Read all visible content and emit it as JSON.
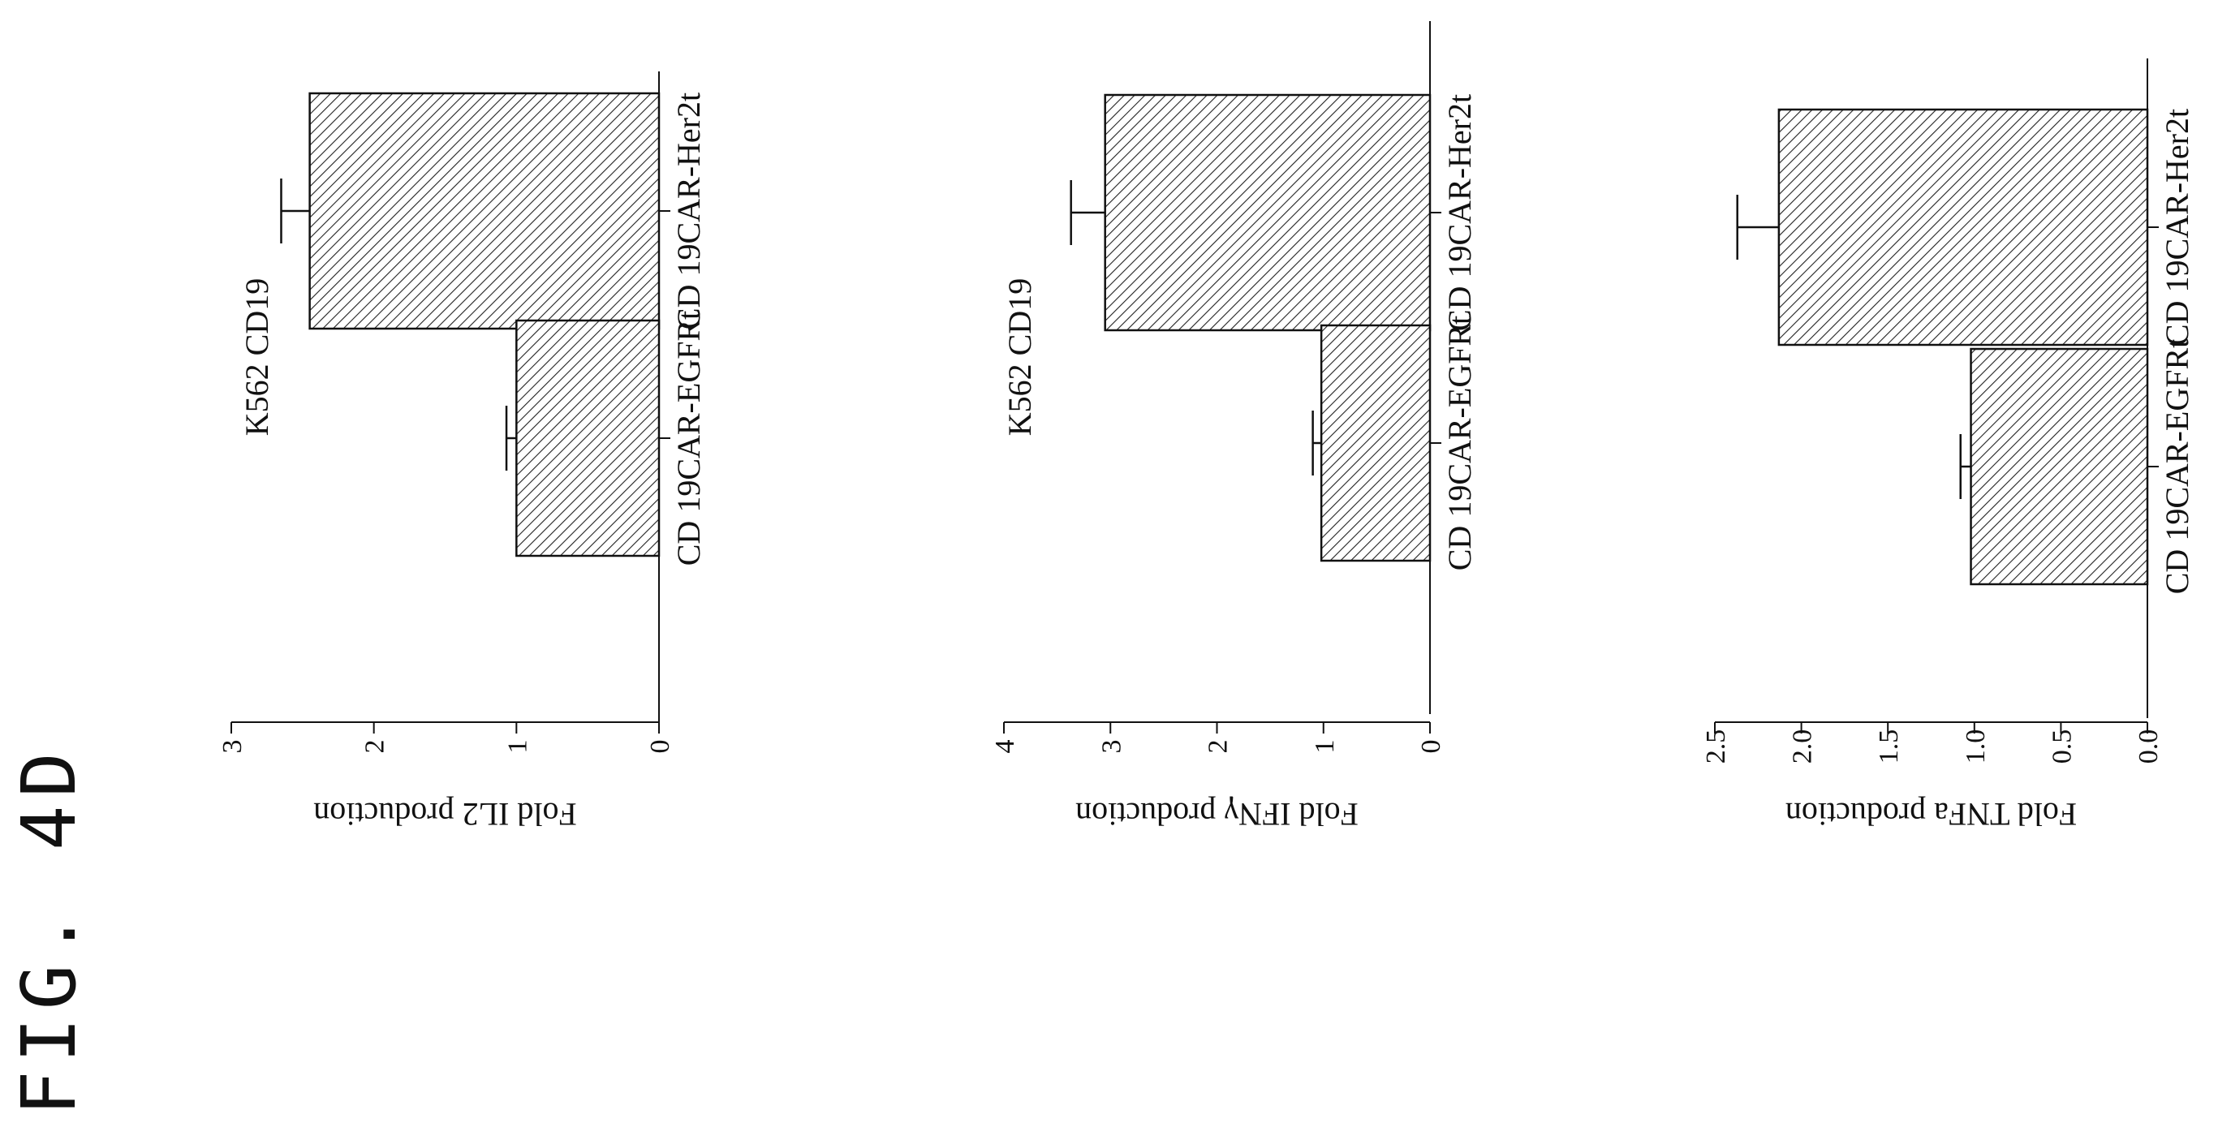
{
  "figure_label": "FIG. 4D",
  "chart_data": [
    {
      "type": "bar",
      "title": "K562 CD19",
      "ylabel": "Fold IL2 production",
      "categories": [
        "CD 19CAR-Her2t",
        "CD 19CAR-EGFRt"
      ],
      "values": [
        2.45,
        1.0
      ],
      "errors": [
        0.2,
        0.07
      ],
      "ylim": [
        0,
        3
      ],
      "ticks": [
        0,
        1,
        2,
        3
      ],
      "tick_labels": [
        "0",
        "1",
        "2",
        "3"
      ],
      "pattern": "diagonal-hatch"
    },
    {
      "type": "bar",
      "title": "K562 CD19",
      "ylabel": "Fold IFNγ production",
      "categories": [
        "CD 19CAR-Her2t",
        "CD 19CAR-EGFRt"
      ],
      "values": [
        3.05,
        1.02
      ],
      "errors": [
        0.32,
        0.08
      ],
      "ylim": [
        0,
        4
      ],
      "ticks": [
        0,
        1,
        2,
        3,
        4
      ],
      "tick_labels": [
        "0",
        "1",
        "2",
        "3",
        "4"
      ],
      "pattern": "diagonal-hatch"
    },
    {
      "type": "bar",
      "title": "",
      "ylabel": "Fold TNFa production",
      "categories": [
        "CD 19CAR-Her2t",
        "CD 19CAR-EGFRt"
      ],
      "values": [
        2.13,
        1.02
      ],
      "errors": [
        0.24,
        0.06
      ],
      "ylim": [
        0,
        2.5
      ],
      "ticks": [
        0,
        0.5,
        1,
        1.5,
        2,
        2.5
      ],
      "tick_labels": [
        "0.0",
        "0.5",
        "1.0",
        "1.5",
        "2.0",
        "2.5"
      ],
      "pattern": "diagonal-hatch"
    }
  ]
}
